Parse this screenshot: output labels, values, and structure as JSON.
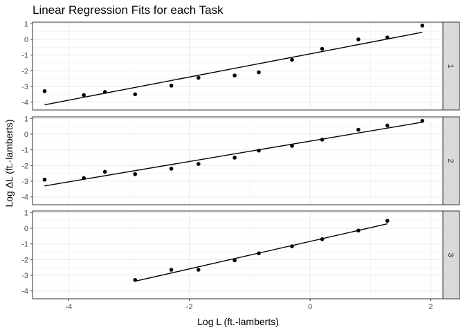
{
  "chart_data": {
    "type": "scatter",
    "title": "Linear Regression Fits for each Task",
    "xlabel": "Log L (ft.-lamberts)",
    "ylabel": "Log ΔL (ft.-lamberts)",
    "xlim": [
      -4.6,
      2.2
    ],
    "ylim": [
      -4.5,
      1.1
    ],
    "x_ticks": [
      -4,
      -2,
      0,
      2
    ],
    "y_ticks": [
      -4,
      -3,
      -2,
      -1,
      0,
      1
    ],
    "grid": true,
    "facet_strip_position": "right",
    "panels": [
      {
        "label": "1",
        "points": [
          {
            "x": -4.4,
            "y": -3.3
          },
          {
            "x": -3.75,
            "y": -3.55
          },
          {
            "x": -3.4,
            "y": -3.35
          },
          {
            "x": -2.9,
            "y": -3.5
          },
          {
            "x": -2.3,
            "y": -2.95
          },
          {
            "x": -1.85,
            "y": -2.45
          },
          {
            "x": -1.25,
            "y": -2.3
          },
          {
            "x": -0.85,
            "y": -2.1
          },
          {
            "x": -0.3,
            "y": -1.3
          },
          {
            "x": 0.2,
            "y": -0.6
          },
          {
            "x": 0.8,
            "y": 0.0
          },
          {
            "x": 1.28,
            "y": 0.12
          },
          {
            "x": 1.86,
            "y": 0.88
          }
        ],
        "fit": {
          "x": [
            -4.4,
            1.86
          ],
          "y": [
            -4.17,
            0.45
          ]
        }
      },
      {
        "label": "2",
        "points": [
          {
            "x": -4.4,
            "y": -2.9
          },
          {
            "x": -3.75,
            "y": -2.8
          },
          {
            "x": -3.4,
            "y": -2.4
          },
          {
            "x": -2.9,
            "y": -2.55
          },
          {
            "x": -2.3,
            "y": -2.2
          },
          {
            "x": -1.85,
            "y": -1.9
          },
          {
            "x": -1.25,
            "y": -1.5
          },
          {
            "x": -0.85,
            "y": -1.05
          },
          {
            "x": -0.3,
            "y": -0.75
          },
          {
            "x": 0.2,
            "y": -0.35
          },
          {
            "x": 0.8,
            "y": 0.28
          },
          {
            "x": 1.28,
            "y": 0.55
          },
          {
            "x": 1.86,
            "y": 0.85
          }
        ],
        "fit": {
          "x": [
            -4.4,
            1.86
          ],
          "y": [
            -3.3,
            0.76
          ]
        }
      },
      {
        "label": "3",
        "points": [
          {
            "x": -2.9,
            "y": -3.3
          },
          {
            "x": -2.3,
            "y": -2.65
          },
          {
            "x": -1.85,
            "y": -2.65
          },
          {
            "x": -1.25,
            "y": -2.05
          },
          {
            "x": -0.85,
            "y": -1.6
          },
          {
            "x": -0.3,
            "y": -1.15
          },
          {
            "x": 0.2,
            "y": -0.7
          },
          {
            "x": 0.8,
            "y": -0.15
          },
          {
            "x": 1.28,
            "y": 0.47
          }
        ],
        "fit": {
          "x": [
            -2.9,
            1.28
          ],
          "y": [
            -3.38,
            0.28
          ]
        }
      }
    ]
  }
}
